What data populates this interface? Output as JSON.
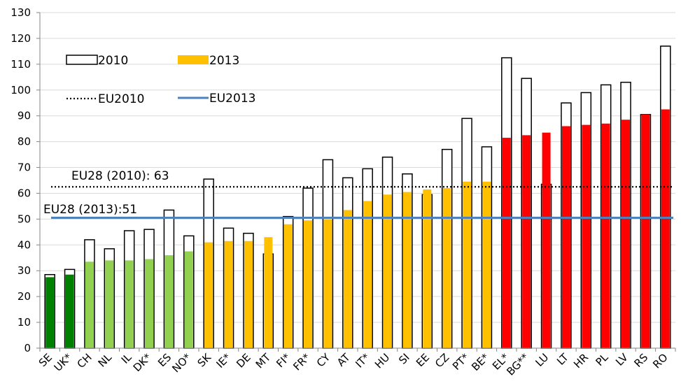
{
  "chart_data": {
    "type": "bar",
    "categories": [
      "SE",
      "UK*",
      "CH",
      "NL",
      "IL",
      "DK*",
      "ES",
      "NO*",
      "SK",
      "IE*",
      "DE",
      "MT",
      "FI*",
      "FR*",
      "CY",
      "AT",
      "IT*",
      "HU",
      "SI",
      "EE",
      "CZ",
      "PT*",
      "BE*",
      "EL*",
      "BG**",
      "LU",
      "LT",
      "HR",
      "PL",
      "LV",
      "RS",
      "RO"
    ],
    "series": [
      {
        "name": "2010",
        "style": "outline",
        "values": [
          28.5,
          30.5,
          42,
          38.5,
          45.5,
          46,
          53.5,
          43.5,
          65.5,
          46.5,
          44.5,
          36.5,
          51,
          62,
          73,
          66,
          69.5,
          74,
          67.5,
          59.5,
          77,
          89,
          78,
          112.5,
          104.5,
          63.5,
          95,
          99,
          102,
          103,
          90.5,
          117
        ]
      },
      {
        "name": "2013",
        "style": "filled",
        "values": [
          27.5,
          28.5,
          33.5,
          34,
          34,
          34.5,
          36,
          37.5,
          41,
          41.5,
          41.5,
          43,
          48,
          49.5,
          50,
          53.5,
          57,
          59.5,
          60.5,
          61.5,
          62,
          64.5,
          64.5,
          81.5,
          82.5,
          83.5,
          86,
          86.5,
          87,
          88.5,
          90.5,
          92.5
        ],
        "group_colors": [
          "#008000",
          "#008000",
          "#92d050",
          "#92d050",
          "#92d050",
          "#92d050",
          "#92d050",
          "#92d050",
          "#ffc000",
          "#ffc000",
          "#ffc000",
          "#ffc000",
          "#ffc000",
          "#ffc000",
          "#ffc000",
          "#ffc000",
          "#ffc000",
          "#ffc000",
          "#ffc000",
          "#ffc000",
          "#ffc000",
          "#ffc000",
          "#ffc000",
          "#ff0000",
          "#ff0000",
          "#ff0000",
          "#ff0000",
          "#ff0000",
          "#ff0000",
          "#ff0000",
          "#ff0000",
          "#ff0000"
        ]
      }
    ],
    "reference_lines": [
      {
        "name": "EU2010",
        "value": 62.5,
        "style": "dotted",
        "color": "#000000",
        "annotation": "EU28 (2010):  63"
      },
      {
        "name": "EU2013",
        "value": 50.5,
        "style": "solid",
        "color": "#4f81bd",
        "annotation": "EU28 (2013):51"
      }
    ],
    "title": "",
    "xlabel": "",
    "ylabel": "",
    "ylim": [
      0,
      130
    ],
    "yticks": [
      0,
      10,
      20,
      30,
      40,
      50,
      60,
      70,
      80,
      90,
      100,
      110,
      120,
      130
    ],
    "grid": true,
    "legend_position": "top-left",
    "colors": {
      "grid": "#d9d9d9",
      "axis": "#868686",
      "outline": "#000000",
      "legend_2013": "#ffc000"
    }
  }
}
